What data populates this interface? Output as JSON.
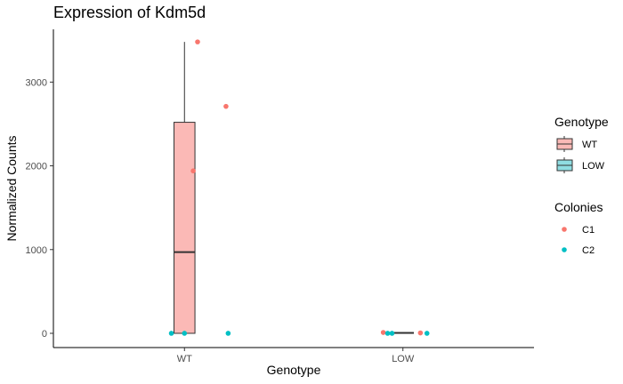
{
  "chart_data": {
    "type": "box",
    "title": "Expression of Kdm5d",
    "xlabel": "Genotype",
    "ylabel": "Normalized Counts",
    "categories": [
      "WT",
      "LOW"
    ],
    "ylim": [
      -170,
      3630
    ],
    "yticks": [
      0,
      1000,
      2000,
      3000
    ],
    "boxes": [
      {
        "category": "WT",
        "min": 0,
        "q1": 0,
        "median": 970,
        "q3": 2520,
        "max": 3480,
        "fill": "#fbb9b6"
      },
      {
        "category": "LOW",
        "min": 0,
        "q1": 0,
        "median": 5,
        "q3": 10,
        "max": 10,
        "fill": "#8fdde2"
      }
    ],
    "points": [
      {
        "category": "WT",
        "jitter": 0.06,
        "value": 3480,
        "colony": "C1"
      },
      {
        "category": "WT",
        "jitter": 0.19,
        "value": 2710,
        "colony": "C1"
      },
      {
        "category": "WT",
        "jitter": 0.04,
        "value": 1940,
        "colony": "C1"
      },
      {
        "category": "WT",
        "jitter": -0.06,
        "value": 0,
        "colony": "C2"
      },
      {
        "category": "WT",
        "jitter": 0.0,
        "value": 0,
        "colony": "C2"
      },
      {
        "category": "WT",
        "jitter": 0.2,
        "value": 0,
        "colony": "C2"
      },
      {
        "category": "LOW",
        "jitter": -0.09,
        "value": 10,
        "colony": "C1"
      },
      {
        "category": "LOW",
        "jitter": 0.08,
        "value": 5,
        "colony": "C1"
      },
      {
        "category": "LOW",
        "jitter": -0.07,
        "value": 0,
        "colony": "C2"
      },
      {
        "category": "LOW",
        "jitter": -0.05,
        "value": 0,
        "colony": "C2"
      },
      {
        "category": "LOW",
        "jitter": 0.11,
        "value": 0,
        "colony": "C2"
      }
    ],
    "colony_colors": {
      "C1": "#f8766d",
      "C2": "#00bfc4"
    },
    "legend": {
      "position": "right",
      "genotype_title": "Genotype",
      "genotype_items": [
        {
          "label": "WT",
          "fill": "#fbb9b6"
        },
        {
          "label": "LOW",
          "fill": "#8fdde2"
        }
      ],
      "colonies_title": "Colonies",
      "colonies_items": [
        {
          "label": "C1",
          "color": "#f8766d"
        },
        {
          "label": "C2",
          "color": "#00bfc4"
        }
      ]
    }
  }
}
